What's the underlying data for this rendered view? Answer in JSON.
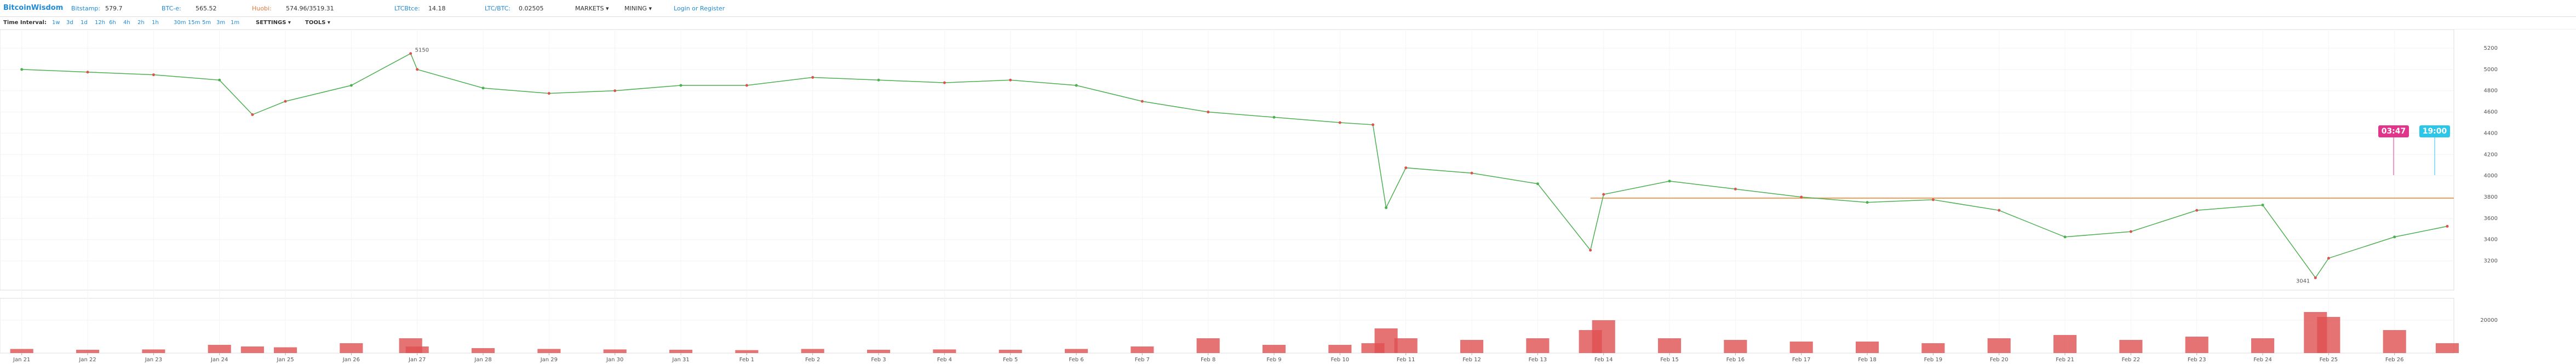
{
  "header": {
    "brand": "BitcoinWisdom",
    "tickers": [
      {
        "label": "Bitstamp:",
        "value": "579.7"
      },
      {
        "label": "BTC-e:",
        "value": "565.52"
      },
      {
        "label": "Huobi:",
        "value": "574.96/3519.31"
      },
      {
        "label": "LTCBtce:",
        "value": "14.18"
      },
      {
        "label": "LTC/BTC:",
        "value": "0.02505"
      }
    ],
    "menus": [
      "MARKETS ▾",
      "MINING ▾"
    ],
    "login": "Login or Register"
  },
  "toolbar": {
    "label": "Time Interval:",
    "intervals": [
      "1w",
      "3d",
      "1d",
      "12h",
      "6h",
      "4h",
      "2h",
      "1h",
      "30m",
      "15m",
      "5m",
      "3m",
      "1m"
    ],
    "menus": [
      "SETTINGS ▾",
      "TOOLS ▾"
    ]
  },
  "chart_data": {
    "type": "line",
    "x": [
      0,
      1,
      2,
      3,
      3.5,
      4,
      5,
      5.9,
      6,
      7,
      8,
      9,
      10,
      11,
      12,
      13,
      14,
      15,
      16,
      17,
      18,
      19,
      20,
      20.5,
      20.7,
      21,
      22,
      23,
      23.8,
      24,
      25,
      26,
      27,
      28,
      29,
      30,
      31,
      32,
      33,
      34,
      34.8,
      35,
      36,
      36.8
    ],
    "values": [
      5000,
      4975,
      4950,
      4900,
      4575,
      4700,
      4850,
      5150,
      5000,
      4825,
      4775,
      4800,
      4850,
      4850,
      4925,
      4900,
      4875,
      4900,
      4850,
      4700,
      4600,
      4550,
      4500,
      4480,
      3700,
      4075,
      4025,
      3925,
      3300,
      3825,
      3950,
      3875,
      3800,
      3750,
      3775,
      3675,
      3425,
      3475,
      3675,
      3725,
      3041,
      3225,
      3425,
      3525
    ],
    "color": "#4caf50",
    "volume": [
      2500,
      2000,
      2200,
      5000,
      4000,
      3500,
      6000,
      9000,
      4000,
      3000,
      2500,
      2200,
      2000,
      1800,
      2500,
      2000,
      2200,
      2000,
      2500,
      4000,
      9000,
      5000,
      5000,
      6000,
      15000,
      9000,
      8000,
      9000,
      14000,
      20000,
      9000,
      8000,
      7000,
      7000,
      6000,
      9000,
      11000,
      8000,
      10000,
      9000,
      25000,
      22000,
      14000,
      6000
    ],
    "volume_color": "#e05050",
    "xlim": [
      -0.33,
      36.9
    ],
    "xticks": [
      {
        "value": 0,
        "label": "Jan 21"
      },
      {
        "value": 1,
        "label": "Jan 22"
      },
      {
        "value": 2,
        "label": "Jan 23"
      },
      {
        "value": 3,
        "label": "Jan 24"
      },
      {
        "value": 4,
        "label": "Jan 25"
      },
      {
        "value": 5,
        "label": "Jan 26"
      },
      {
        "value": 6,
        "label": "Jan 27"
      },
      {
        "value": 7,
        "label": "Jan 28"
      },
      {
        "value": 8,
        "label": "Jan 29"
      },
      {
        "value": 9,
        "label": "Jan 30"
      },
      {
        "value": 10,
        "label": "Jan 31"
      },
      {
        "value": 11,
        "label": "Feb 1"
      },
      {
        "value": 12,
        "label": "Feb 2"
      },
      {
        "value": 13,
        "label": "Feb 3"
      },
      {
        "value": 14,
        "label": "Feb 4"
      },
      {
        "value": 15,
        "label": "Feb 5"
      },
      {
        "value": 16,
        "label": "Feb 6"
      },
      {
        "value": 17,
        "label": "Feb 7"
      },
      {
        "value": 18,
        "label": "Feb 8"
      },
      {
        "value": 19,
        "label": "Feb 9"
      },
      {
        "value": 20,
        "label": "Feb 10"
      },
      {
        "value": 21,
        "label": "Feb 11"
      },
      {
        "value": 22,
        "label": "Feb 12"
      },
      {
        "value": 23,
        "label": "Feb 13"
      },
      {
        "value": 24,
        "label": "Feb 14"
      },
      {
        "value": 25,
        "label": "Feb 15"
      },
      {
        "value": 26,
        "label": "Feb 16"
      },
      {
        "value": 27,
        "label": "Feb 17"
      },
      {
        "value": 28,
        "label": "Feb 18"
      },
      {
        "value": 29,
        "label": "Feb 19"
      },
      {
        "value": 30,
        "label": "Feb 20"
      },
      {
        "value": 31,
        "label": "Feb 21"
      },
      {
        "value": 32,
        "label": "Feb 22"
      },
      {
        "value": 33,
        "label": "Feb 23"
      },
      {
        "value": 34,
        "label": "Feb 24"
      },
      {
        "value": 35,
        "label": "Feb 25"
      },
      {
        "value": 36,
        "label": "Feb 26"
      }
    ],
    "ylim": [
      2925,
      5375
    ],
    "yticks": [
      3200,
      3400,
      3600,
      3800,
      4000,
      4200,
      4400,
      4600,
      4800,
      5000,
      5200
    ],
    "y2lim": [
      0,
      30000
    ],
    "y2ticks": [
      20000
    ],
    "reference_line": 3790,
    "reference_color": "#f0a060",
    "annotations": [
      {
        "text": "5150",
        "x": 5.9,
        "y": 5150
      },
      {
        "text": "3041",
        "x": 34.8,
        "y": 3041
      }
    ],
    "time_tags": [
      {
        "text": "03:47",
        "color": "#e0358a"
      },
      {
        "text": "19:00",
        "color": "#2cc6e8"
      }
    ],
    "grid": true
  }
}
